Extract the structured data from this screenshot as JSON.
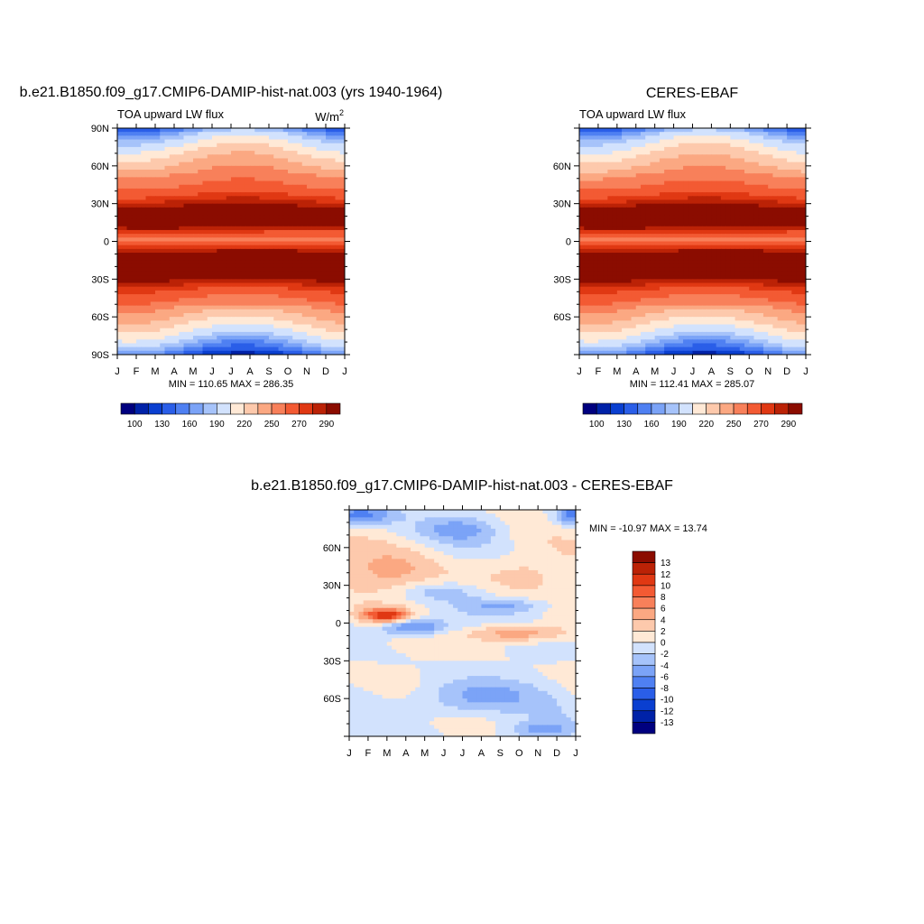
{
  "chart_data": [
    {
      "type": "heatmap",
      "title": "b.e21.B1850.f09_g17.CMIP6-DAMIP-hist-nat.003 (yrs 1940-1964)",
      "subtitle_left": "TOA upward LW flux",
      "units": "W/m",
      "units_sup": "2",
      "x_ticks": [
        "J",
        "F",
        "M",
        "A",
        "M",
        "J",
        "J",
        "A",
        "S",
        "O",
        "N",
        "D",
        "J"
      ],
      "y_ticks": [
        "90N",
        "60N",
        "30N",
        "0",
        "30S",
        "60S",
        "90S"
      ],
      "ylim": [
        -90,
        90
      ],
      "stats": "MIN = 110.65 MAX = 286.35",
      "colorbar": {
        "orientation": "horizontal",
        "labels": [
          "100",
          "130",
          "160",
          "190",
          "220",
          "250",
          "270",
          "290"
        ],
        "colors": [
          "#00007f",
          "#0022a8",
          "#0a3fd0",
          "#2a5ee8",
          "#4f80f2",
          "#7ba3f7",
          "#a6c3fa",
          "#d2e2fd",
          "#ffe9d6",
          "#fdc9ac",
          "#fba882",
          "#f8805a",
          "#f35a33",
          "#e03813",
          "#bb2206",
          "#8b0c00"
        ]
      }
    },
    {
      "type": "heatmap",
      "title": "CERES-EBAF",
      "subtitle_left": "TOA upward LW flux",
      "x_ticks": [
        "J",
        "F",
        "M",
        "A",
        "M",
        "J",
        "J",
        "A",
        "S",
        "O",
        "N",
        "D",
        "J"
      ],
      "y_ticks": [
        "60N",
        "30N",
        "0",
        "30S",
        "60S"
      ],
      "ylim": [
        -90,
        90
      ],
      "stats": "MIN = 112.41 MAX = 285.07",
      "colorbar": {
        "orientation": "horizontal",
        "labels": [
          "100",
          "130",
          "160",
          "190",
          "220",
          "250",
          "270",
          "290"
        ],
        "colors": [
          "#00007f",
          "#0022a8",
          "#0a3fd0",
          "#2a5ee8",
          "#4f80f2",
          "#7ba3f7",
          "#a6c3fa",
          "#d2e2fd",
          "#ffe9d6",
          "#fdc9ac",
          "#fba882",
          "#f8805a",
          "#f35a33",
          "#e03813",
          "#bb2206",
          "#8b0c00"
        ]
      }
    },
    {
      "type": "heatmap",
      "title": "b.e21.B1850.f09_g17.CMIP6-DAMIP-hist-nat.003 - CERES-EBAF",
      "x_ticks": [
        "J",
        "F",
        "M",
        "A",
        "M",
        "J",
        "J",
        "A",
        "S",
        "O",
        "N",
        "D",
        "J"
      ],
      "y_ticks": [
        "60N",
        "30N",
        "0",
        "30S",
        "60S"
      ],
      "ylim": [
        -90,
        90
      ],
      "stats": "MIN = -10.97 MAX =  13.74",
      "colorbar": {
        "orientation": "vertical",
        "labels": [
          "13",
          "12",
          "10",
          "8",
          "6",
          "4",
          "2",
          "0",
          "-2",
          "-4",
          "-6",
          "-8",
          "-10",
          "-12",
          "-13"
        ],
        "colors": [
          "#8b0c00",
          "#bb2206",
          "#e03813",
          "#f35a33",
          "#f8805a",
          "#fba882",
          "#fdc9ac",
          "#ffe9d6",
          "#d2e2fd",
          "#a6c3fa",
          "#7ba3f7",
          "#4f80f2",
          "#2a5ee8",
          "#0a3fd0",
          "#0022a8",
          "#00007f"
        ]
      }
    }
  ]
}
